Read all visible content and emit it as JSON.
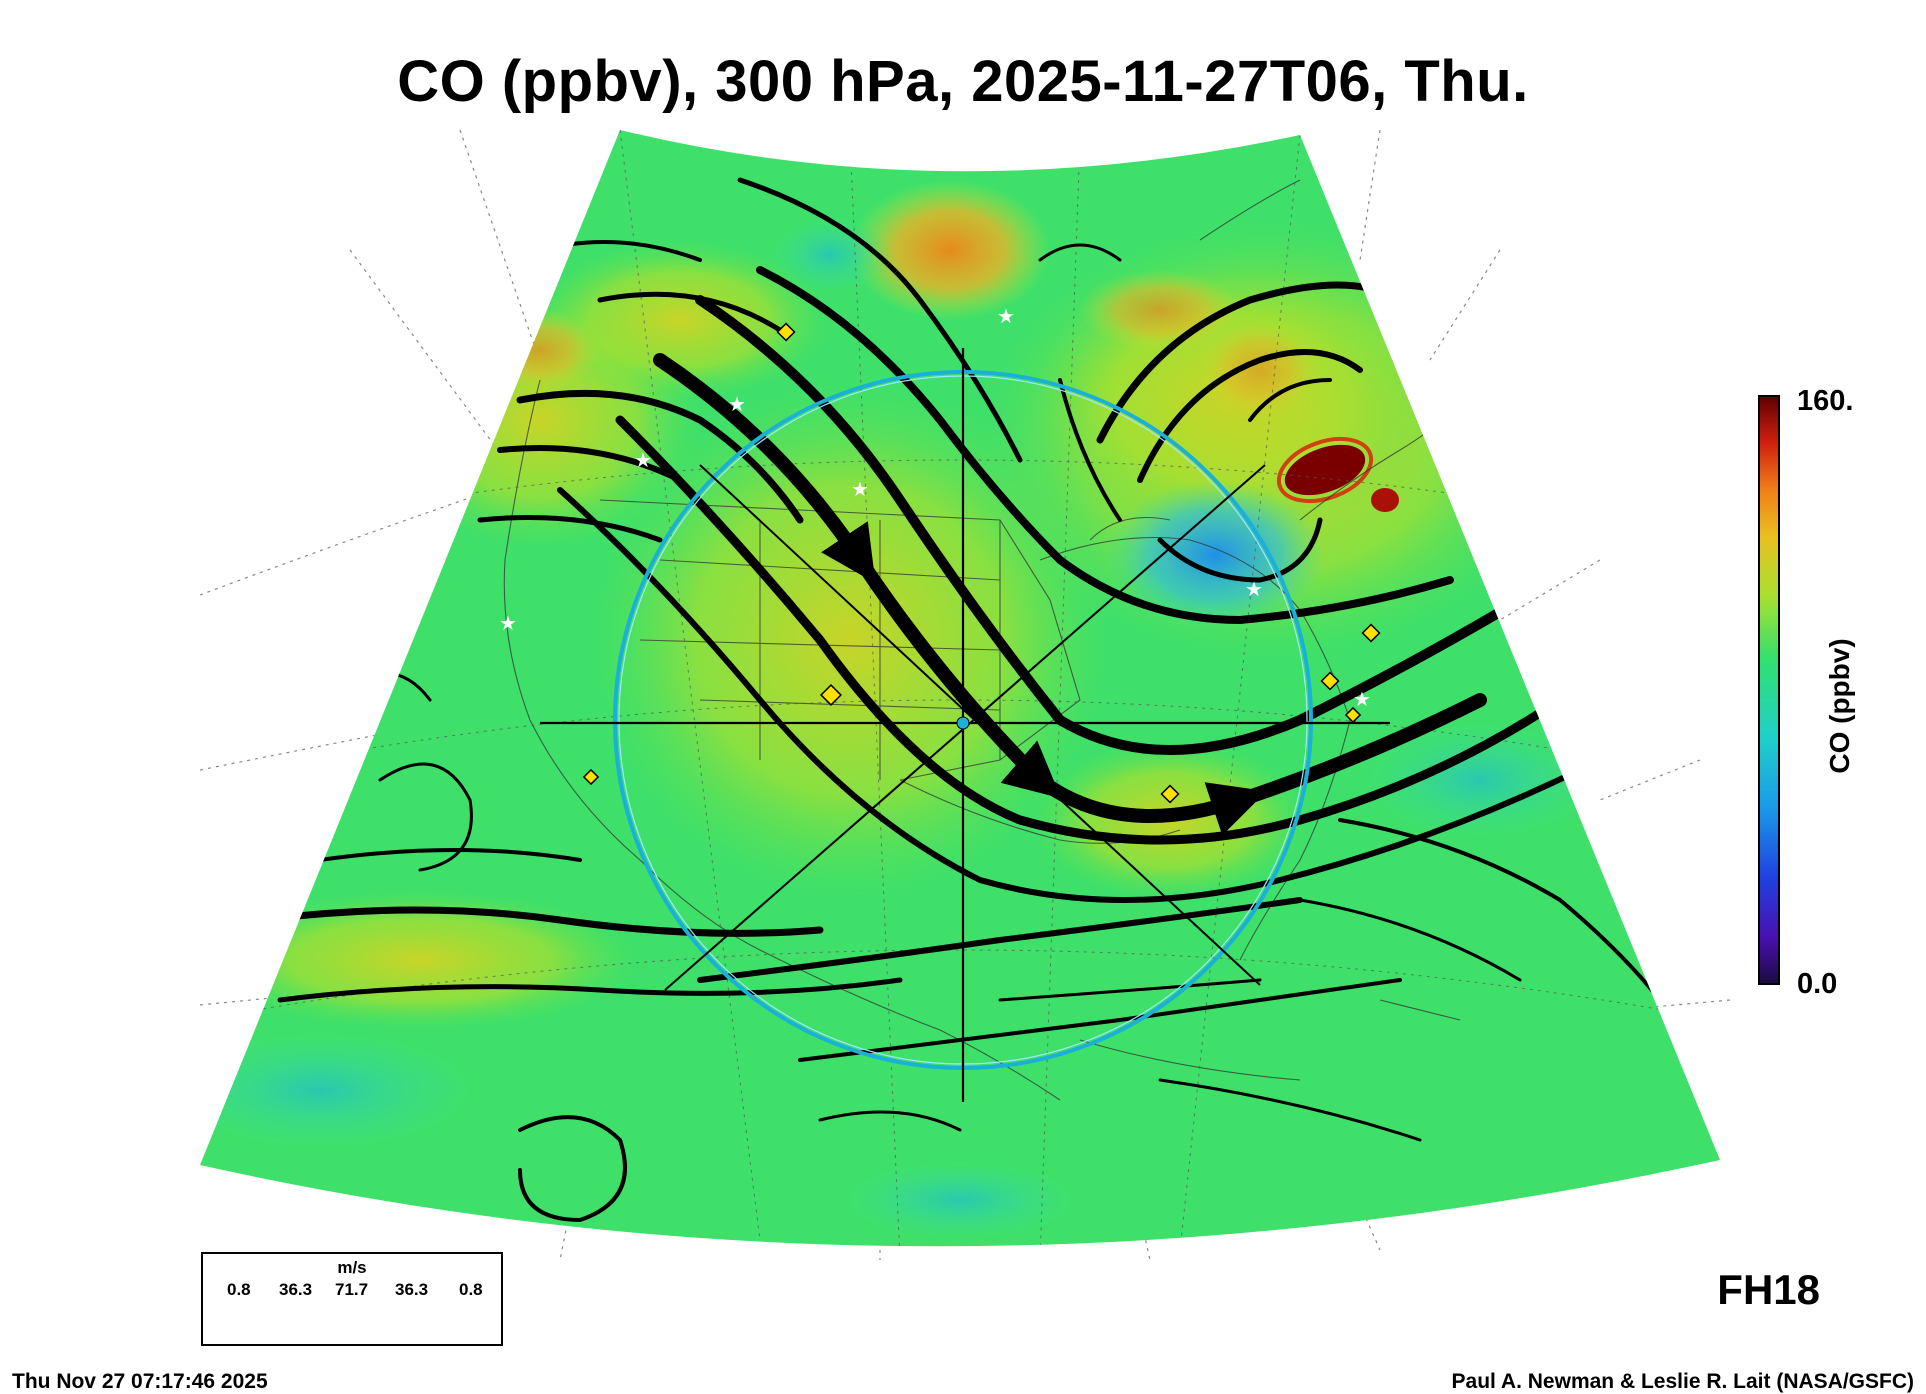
{
  "title": "CO (ppbv), 300 hPa, 2025-11-27T06, Thu.",
  "colorbar": {
    "max_label": "160.",
    "min_label": "0.0",
    "axis_label": "CO (ppbv)",
    "min": 0,
    "max": 160
  },
  "legend": {
    "unit": "m/s",
    "values": [
      "0.8",
      "36.3",
      "71.7",
      "36.3",
      "0.8"
    ]
  },
  "forecast_hour": "FH18",
  "timestamp": "Thu Nov 27 07:17:46 2025",
  "credit": "Paul A. Newman & Leslie R. Lait (NASA/GSFC)",
  "colors": {
    "background_field": "#3ee06a",
    "high_co": "#e8a020",
    "peak_co": "#7a0000",
    "low_co": "#2aa8e0",
    "range_ring": "#1ab0d8",
    "streamline": "#000000"
  }
}
